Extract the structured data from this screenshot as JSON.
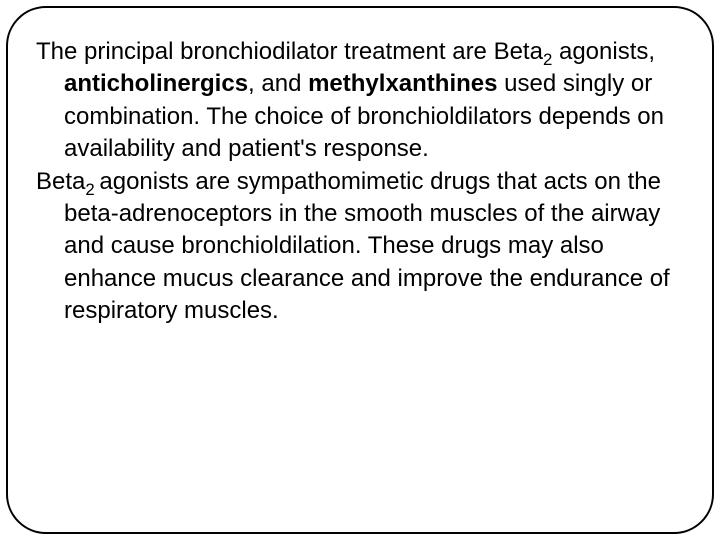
{
  "slide": {
    "p1": {
      "t1": "The principal bronchiodilator treatment are Beta",
      "sub1": "2",
      "t2": " agonists, ",
      "b1": "anticholinergics",
      "t3": ", and ",
      "b2": "methylxanthines",
      "t4": " used singly or combination. The choice of bronchioldilators depends on availability and patient's response."
    },
    "p2": {
      "t1": "Beta",
      "sub1": "2 ",
      "t2": "agonists are sympathomimetic drugs that acts on the beta-adrenoceptors in the smooth muscles of the airway and cause bronchioldilation. These drugs may also enhance mucus clearance and improve the endurance of respiratory muscles."
    }
  },
  "style": {
    "frame_border_color": "#000000",
    "frame_border_width": 2,
    "frame_border_radius": 40,
    "background_color": "#ffffff",
    "text_color": "#000000",
    "font_size": 24,
    "line_height": 1.35,
    "hanging_indent": 28
  }
}
